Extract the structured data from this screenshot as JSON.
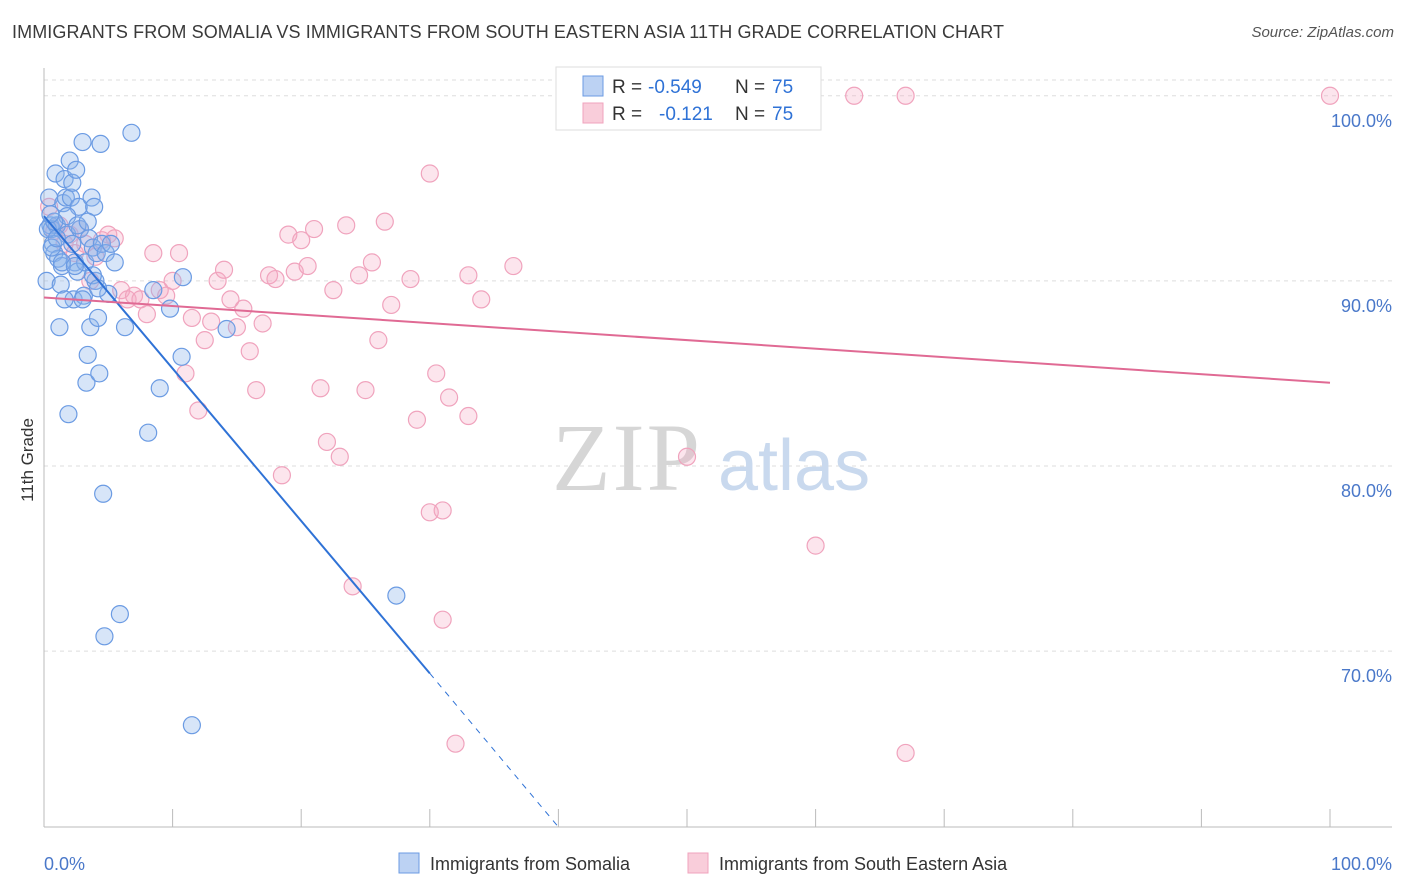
{
  "title": "IMMIGRANTS FROM SOMALIA VS IMMIGRANTS FROM SOUTH EASTERN ASIA 11TH GRADE CORRELATION CHART",
  "source": "Source: ZipAtlas.com",
  "watermark": {
    "zip": "ZIP",
    "atlas": "atlas"
  },
  "colors": {
    "somalia": "#6b9be3",
    "somalia_line": "#2f72d6",
    "sea": "#f0a3bd",
    "sea_line": "#e06a94",
    "tick": "#4a78c9",
    "grid": "#dddddd"
  },
  "stats": {
    "somalia": {
      "r_label": "R =",
      "r_value": "-0.549",
      "n_label": "N =",
      "n_value": "75"
    },
    "sea": {
      "r_label": "R =",
      "r_value": "-0.121",
      "n_label": "N =",
      "n_value": "75"
    }
  },
  "chart_data": {
    "type": "scatter",
    "title": "IMMIGRANTS FROM SOMALIA VS IMMIGRANTS FROM SOUTH EASTERN ASIA 11TH GRADE CORRELATION CHART",
    "xlabel": "",
    "ylabel": "11th Grade",
    "xlim": [
      0,
      100
    ],
    "ylim": [
      60.5,
      101.5
    ],
    "x_tick_labels": [
      "0.0%",
      "100.0%"
    ],
    "y_ticks": [
      70,
      80,
      90,
      100
    ],
    "y_tick_labels": [
      "70.0%",
      "80.0%",
      "90.0%",
      "100.0%"
    ],
    "grid": true,
    "legend_position": "bottom-center",
    "series": [
      {
        "name": "Immigrants from Somalia",
        "color": "#6b9be3",
        "trend": {
          "x0": 0,
          "y0": 93.5,
          "x1": 30,
          "y1": 68.8,
          "dashed_to_x": 40,
          "dashed_to_y": 60.5
        },
        "points": [
          [
            0.2,
            90.0
          ],
          [
            0.4,
            94.5
          ],
          [
            0.5,
            93.0
          ],
          [
            0.6,
            92.8
          ],
          [
            0.7,
            92.0
          ],
          [
            0.8,
            91.5
          ],
          [
            0.9,
            95.8
          ],
          [
            1.0,
            93.0
          ],
          [
            1.1,
            91.2
          ],
          [
            1.2,
            87.5
          ],
          [
            1.3,
            89.8
          ],
          [
            1.4,
            90.8
          ],
          [
            1.5,
            94.2
          ],
          [
            1.6,
            95.5
          ],
          [
            1.7,
            94.5
          ],
          [
            1.8,
            92.5
          ],
          [
            1.9,
            82.8
          ],
          [
            2.0,
            96.5
          ],
          [
            2.1,
            94.5
          ],
          [
            2.2,
            95.3
          ],
          [
            2.3,
            89.0
          ],
          [
            2.4,
            91.0
          ],
          [
            2.5,
            96.0
          ],
          [
            2.6,
            90.5
          ],
          [
            2.7,
            94.0
          ],
          [
            2.8,
            92.8
          ],
          [
            3.0,
            97.5
          ],
          [
            3.1,
            89.2
          ],
          [
            3.2,
            91.0
          ],
          [
            3.3,
            84.5
          ],
          [
            3.4,
            86.0
          ],
          [
            3.5,
            92.3
          ],
          [
            3.6,
            87.5
          ],
          [
            3.7,
            94.5
          ],
          [
            3.8,
            91.8
          ],
          [
            3.9,
            94.0
          ],
          [
            4.0,
            90.0
          ],
          [
            4.1,
            91.5
          ],
          [
            4.2,
            88.0
          ],
          [
            4.3,
            85.0
          ],
          [
            4.4,
            97.4
          ],
          [
            4.5,
            92.0
          ],
          [
            4.6,
            78.5
          ],
          [
            4.7,
            70.8
          ],
          [
            4.8,
            91.5
          ],
          [
            5.0,
            89.3
          ],
          [
            5.2,
            92.0
          ],
          [
            5.5,
            91.0
          ],
          [
            5.9,
            72.0
          ],
          [
            6.3,
            87.5
          ],
          [
            6.8,
            98.0
          ],
          [
            8.1,
            81.8
          ],
          [
            8.5,
            89.5
          ],
          [
            9.0,
            84.2
          ],
          [
            9.8,
            88.5
          ],
          [
            10.7,
            85.9
          ],
          [
            10.8,
            90.2
          ],
          [
            11.5,
            66.0
          ],
          [
            14.2,
            87.4
          ],
          [
            27.4,
            73.0
          ],
          [
            0.3,
            92.8
          ],
          [
            0.6,
            91.8
          ],
          [
            1.0,
            92.3
          ],
          [
            1.4,
            91.0
          ],
          [
            1.8,
            93.5
          ],
          [
            2.2,
            92.0
          ],
          [
            2.6,
            93.0
          ],
          [
            3.0,
            89.0
          ],
          [
            3.4,
            93.2
          ],
          [
            3.8,
            90.3
          ],
          [
            4.2,
            89.6
          ],
          [
            1.6,
            89.0
          ],
          [
            0.8,
            93.2
          ],
          [
            2.4,
            90.8
          ],
          [
            0.5,
            93.6
          ]
        ]
      },
      {
        "name": "Immigrants from South Eastern Asia",
        "color": "#f0a3bd",
        "trend": {
          "x0": 0,
          "y0": 89.1,
          "x1": 100,
          "y1": 84.5
        },
        "points": [
          [
            0.4,
            94.0
          ],
          [
            0.8,
            92.7
          ],
          [
            1.2,
            93.0
          ],
          [
            1.6,
            92.0
          ],
          [
            2.0,
            92.5
          ],
          [
            2.4,
            91.5
          ],
          [
            2.8,
            92.8
          ],
          [
            3.2,
            92.0
          ],
          [
            3.6,
            90.0
          ],
          [
            4.0,
            91.3
          ],
          [
            4.5,
            92.2
          ],
          [
            5.0,
            92.5
          ],
          [
            5.5,
            92.3
          ],
          [
            6.0,
            89.5
          ],
          [
            6.5,
            89.0
          ],
          [
            7.0,
            89.2
          ],
          [
            7.5,
            89.0
          ],
          [
            8.0,
            88.2
          ],
          [
            8.5,
            91.5
          ],
          [
            9.0,
            89.5
          ],
          [
            9.5,
            89.2
          ],
          [
            10.0,
            90.0
          ],
          [
            10.5,
            91.5
          ],
          [
            11.0,
            85.0
          ],
          [
            11.5,
            88.0
          ],
          [
            12.0,
            83.0
          ],
          [
            12.5,
            86.8
          ],
          [
            13.0,
            87.8
          ],
          [
            13.5,
            90.0
          ],
          [
            14.0,
            90.6
          ],
          [
            14.5,
            89.0
          ],
          [
            15.0,
            87.5
          ],
          [
            15.5,
            88.5
          ],
          [
            16.0,
            86.2
          ],
          [
            16.5,
            84.1
          ],
          [
            17.0,
            87.7
          ],
          [
            17.5,
            90.3
          ],
          [
            18.0,
            90.1
          ],
          [
            18.5,
            79.5
          ],
          [
            19.0,
            92.5
          ],
          [
            19.5,
            90.5
          ],
          [
            20.0,
            92.2
          ],
          [
            20.5,
            90.8
          ],
          [
            21.0,
            92.8
          ],
          [
            21.5,
            84.2
          ],
          [
            22.0,
            81.3
          ],
          [
            22.5,
            89.5
          ],
          [
            23.0,
            80.5
          ],
          [
            23.5,
            93.0
          ],
          [
            24.0,
            73.5
          ],
          [
            24.5,
            90.3
          ],
          [
            25.0,
            84.1
          ],
          [
            25.5,
            91.0
          ],
          [
            26.0,
            86.8
          ],
          [
            26.5,
            93.2
          ],
          [
            27.0,
            88.7
          ],
          [
            28.5,
            90.1
          ],
          [
            29.0,
            82.5
          ],
          [
            30.0,
            77.5
          ],
          [
            30.5,
            85.0
          ],
          [
            31.0,
            71.7
          ],
          [
            31.5,
            83.7
          ],
          [
            32.0,
            65.0
          ],
          [
            33.0,
            82.7
          ],
          [
            36.5,
            90.8
          ],
          [
            33.0,
            90.3
          ],
          [
            34.0,
            89.0
          ],
          [
            50.0,
            80.5
          ],
          [
            60.0,
            75.7
          ],
          [
            63.0,
            100.0
          ],
          [
            67.0,
            100.0
          ],
          [
            67.0,
            64.5
          ],
          [
            100.0,
            100.0
          ],
          [
            30.0,
            95.8
          ],
          [
            31.0,
            77.6
          ]
        ]
      }
    ]
  },
  "legend": {
    "somalia_label": "Immigrants from Somalia",
    "sea_label": "Immigrants from South Eastern Asia"
  }
}
